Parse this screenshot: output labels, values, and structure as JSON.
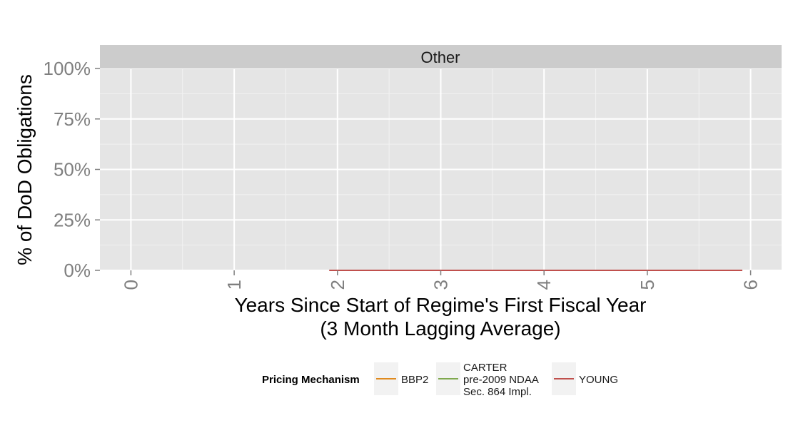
{
  "chart_data": {
    "type": "line",
    "panel_title": "Other",
    "xlabel_line1": "Years Since Start of Regime's First Fiscal Year",
    "xlabel_line2": "(3 Month Lagging Average)",
    "ylabel": "% of DoD Obligations",
    "xlim": [
      -0.3,
      6.3
    ],
    "ylim": [
      0,
      1.0
    ],
    "x_ticks": [
      0,
      1,
      2,
      3,
      4,
      5,
      6
    ],
    "x_tick_labels": [
      "0",
      "1",
      "2",
      "3",
      "4",
      "5",
      "6"
    ],
    "y_ticks": [
      0,
      0.25,
      0.5,
      0.75,
      1.0
    ],
    "y_tick_labels": [
      "0%",
      "25%",
      "50%",
      "75%",
      "100%"
    ],
    "grid": true,
    "legend_position": "bottom",
    "legend_title": "Pricing Mechanism",
    "series": [
      {
        "name": "BBP2",
        "color": "#e08a1e",
        "x": [],
        "y": []
      },
      {
        "name": "CARTER pre-2009 NDAA Sec. 864 Impl.",
        "name_lines": [
          "CARTER",
          "pre-2009 NDAA",
          "Sec. 864 Impl."
        ],
        "color": "#7fa84e",
        "x": [
          4.5,
          4.75
        ],
        "y": [
          0,
          0
        ]
      },
      {
        "name": "YOUNG",
        "color": "#c0504d",
        "x": [
          1.92,
          2.5,
          3.0,
          3.5,
          4.0,
          4.5,
          5.0,
          5.5,
          5.92
        ],
        "y": [
          0,
          0,
          0,
          0,
          0,
          0,
          0,
          0,
          0
        ]
      }
    ]
  }
}
